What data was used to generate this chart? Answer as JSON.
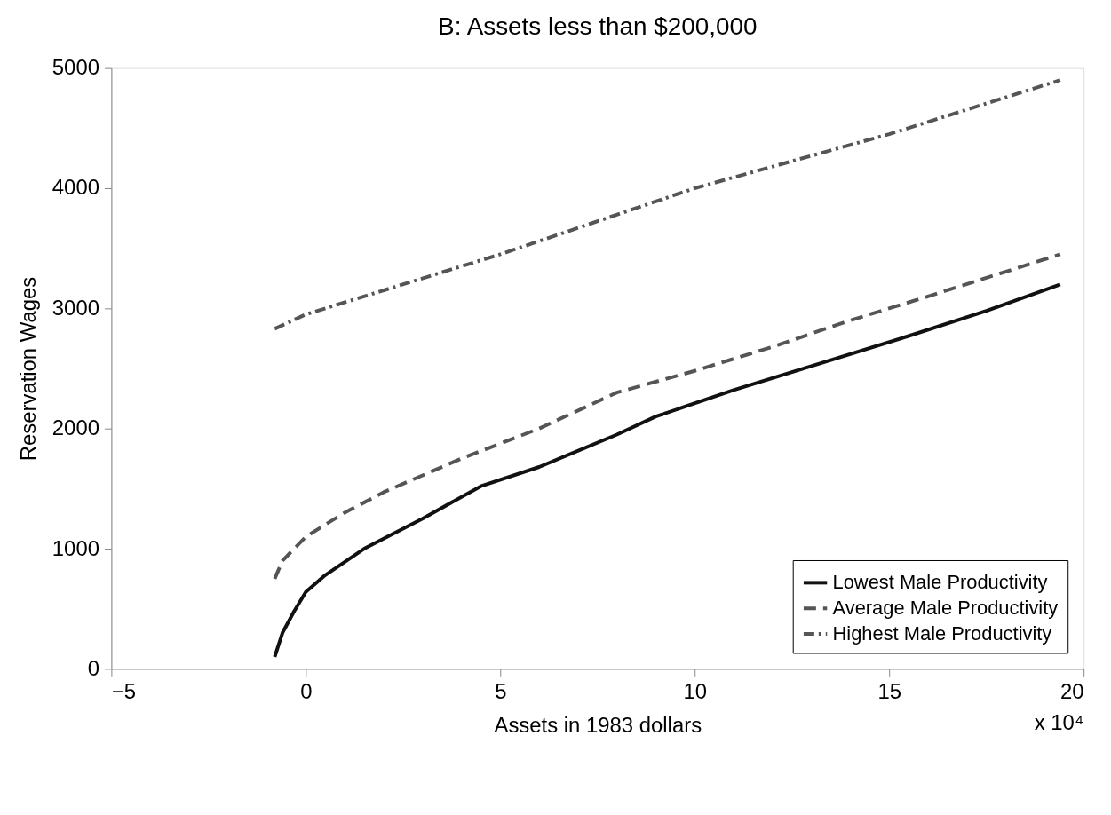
{
  "chart_data": {
    "type": "line",
    "title": "B: Assets less than $200,000",
    "xlabel": "Assets in 1983 dollars",
    "ylabel": "Reservation Wages",
    "annotations": [
      "x 10⁴"
    ],
    "xlim": [
      -5,
      20
    ],
    "xticks": [
      -5,
      0,
      5,
      10,
      15,
      20
    ],
    "ylim": [
      0,
      5000
    ],
    "yticks": [
      0,
      1000,
      2000,
      3000,
      4000,
      5000
    ],
    "grid": false,
    "legend": "bottom right",
    "marker": "none",
    "series": [
      {
        "name": "Lowest Male Productivity",
        "color": "#111111",
        "line_style": "solid",
        "x": [
          -0.8,
          -0.6,
          -0.3,
          0,
          0.5,
          1.5,
          3,
          4.5,
          6,
          8,
          9,
          11,
          13,
          15.5,
          17.5,
          19.4
        ],
        "values": [
          100,
          300,
          480,
          640,
          780,
          1000,
          1250,
          1520,
          1680,
          1950,
          2100,
          2320,
          2520,
          2770,
          2980,
          3200
        ]
      },
      {
        "name": "Average Male Productivity",
        "color": "#555555",
        "line_style": "dashed",
        "x": [
          -0.8,
          -0.6,
          0,
          1,
          2,
          4,
          6,
          8,
          10,
          12,
          14,
          16,
          19.4
        ],
        "values": [
          750,
          900,
          1100,
          1300,
          1470,
          1750,
          2000,
          2300,
          2480,
          2680,
          2900,
          3100,
          3450
        ]
      },
      {
        "name": "Highest Male Productivity",
        "color": "#555555",
        "line_style": "dotted",
        "x": [
          -0.8,
          0,
          5,
          10,
          15,
          19.4
        ],
        "values": [
          2830,
          2950,
          3450,
          4000,
          4450,
          4900
        ]
      }
    ]
  }
}
